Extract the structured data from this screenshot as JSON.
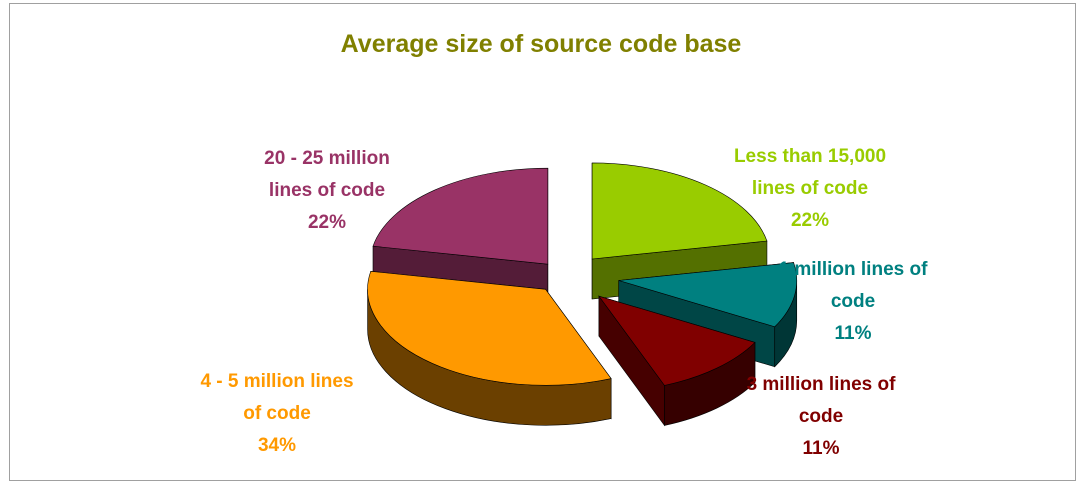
{
  "chart_data": {
    "type": "pie",
    "title": "Average size of source code base",
    "slices": [
      {
        "label": [
          "Less than 15,000",
          "lines of code"
        ],
        "value": 22,
        "value_label": "22%",
        "color": "#99cc00"
      },
      {
        "label": [
          "1 million lines of",
          "code"
        ],
        "value": 11,
        "value_label": "11%",
        "color": "#008080"
      },
      {
        "label": [
          "3 million lines of",
          "code"
        ],
        "value": 11,
        "value_label": "11%",
        "color": "#800000"
      },
      {
        "label": [
          "4 - 5 million lines",
          "of code"
        ],
        "value": 34,
        "value_label": "34%",
        "color": "#ff9900"
      },
      {
        "label": [
          "20 - 25 million",
          "lines of code"
        ],
        "value": 22,
        "value_label": "22%",
        "color": "#993366"
      }
    ],
    "exploded": true,
    "three_d": true,
    "legend": "none",
    "title_color": "#808000"
  }
}
